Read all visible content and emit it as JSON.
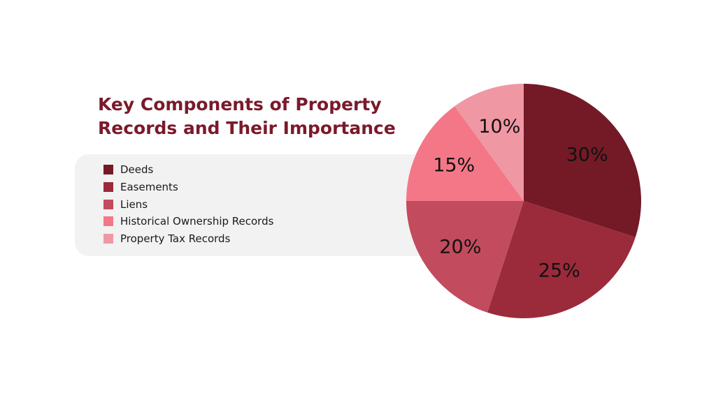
{
  "chart_data": {
    "type": "pie",
    "title_lines": [
      "Key Components of Property",
      "Records and Their Importance"
    ],
    "categories": [
      "Deeds",
      "Easements",
      "Liens",
      "Historical Ownership Records",
      "Property Tax Records"
    ],
    "values": [
      30,
      25,
      20,
      15,
      10
    ],
    "data_labels": [
      "30%",
      "25%",
      "20%",
      "15%",
      "10%"
    ],
    "colors": [
      "#741a27",
      "#9b2a3b",
      "#c24b5d",
      "#f47787",
      "#ef98a3"
    ],
    "legend_position": "left"
  }
}
